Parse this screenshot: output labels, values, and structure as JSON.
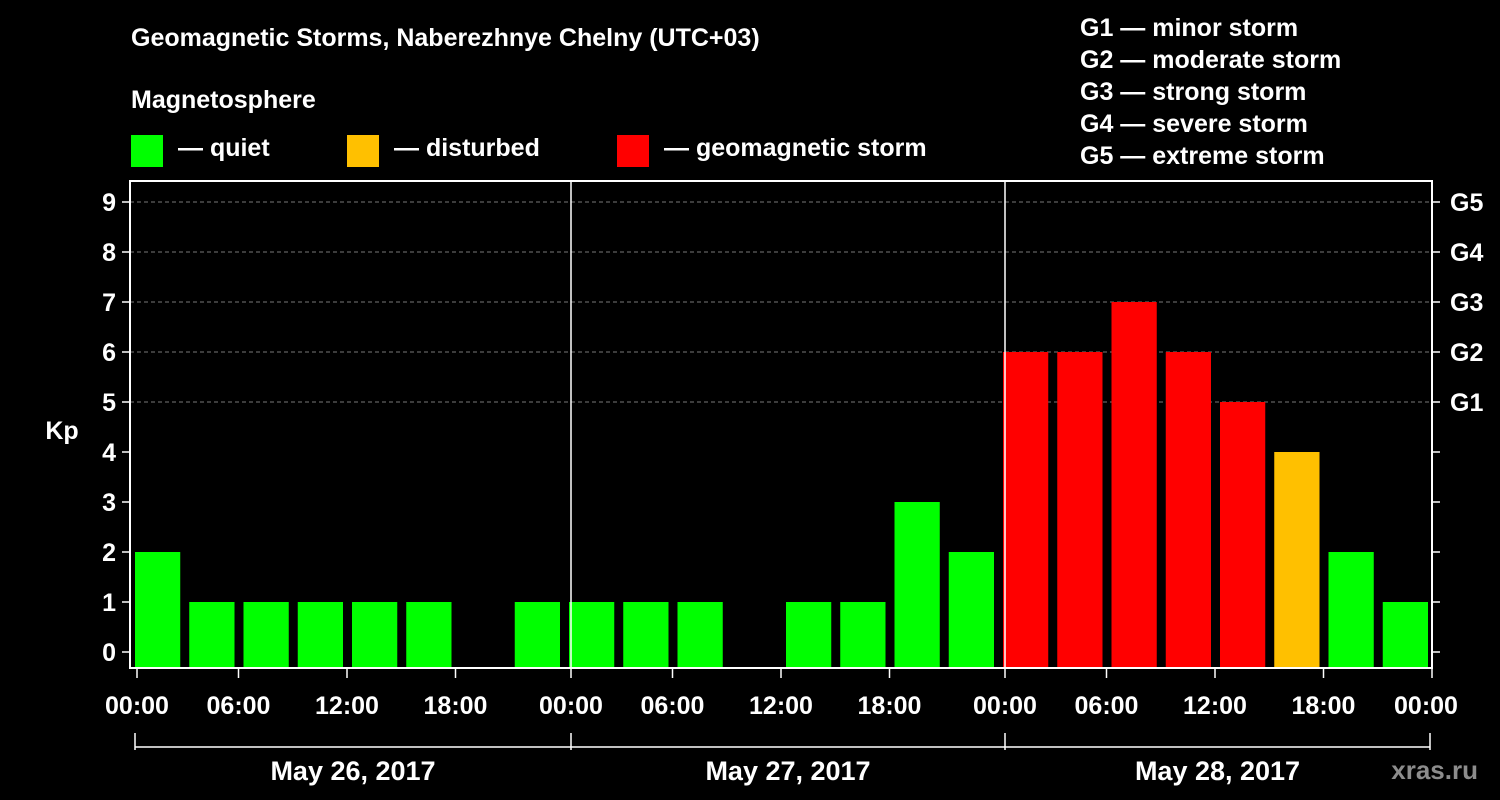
{
  "title": "Geomagnetic Storms, Naberezhnye Chelny (UTC+03)",
  "magnetosphere_label": "Magnetosphere",
  "legend": [
    {
      "label": "— quiet",
      "color": "#00ff00"
    },
    {
      "label": "— disturbed",
      "color": "#ffc000"
    },
    {
      "label": "— geomagnetic storm",
      "color": "#ff0000"
    }
  ],
  "storm_scale": [
    "G1 — minor storm",
    "G2 — moderate storm",
    "G3 — strong storm",
    "G4 — severe storm",
    "G5 — extreme storm"
  ],
  "watermark": "xras.ru",
  "colors": {
    "quiet": "#00ff00",
    "disturbed": "#ffc000",
    "storm": "#ff0000"
  },
  "chart_data": {
    "type": "bar",
    "title": "Geomagnetic Storms, Naberezhnye Chelny (UTC+03)",
    "ylabel": "Kp",
    "ylim": [
      0,
      9
    ],
    "yticks": [
      "0",
      "1",
      "2",
      "3",
      "4",
      "5",
      "6",
      "7",
      "8",
      "9"
    ],
    "right_ticks": [
      {
        "kp": 5,
        "label": "G1"
      },
      {
        "kp": 6,
        "label": "G2"
      },
      {
        "kp": 7,
        "label": "G3"
      },
      {
        "kp": 8,
        "label": "G4"
      },
      {
        "kp": 9,
        "label": "G5"
      }
    ],
    "days": [
      "May 26, 2017",
      "May 27, 2017",
      "May 28, 2017"
    ],
    "time_labels": [
      "00:00",
      "06:00",
      "12:00",
      "18:00"
    ],
    "end_label": "00:00",
    "interval_hours": 3,
    "values": [
      2,
      1,
      1,
      1,
      1,
      1,
      0,
      1,
      1,
      1,
      1,
      0,
      1,
      1,
      3,
      2,
      6,
      6,
      7,
      6,
      5,
      4,
      2,
      1
    ],
    "status": [
      "quiet",
      "quiet",
      "quiet",
      "quiet",
      "quiet",
      "quiet",
      "quiet",
      "quiet",
      "quiet",
      "quiet",
      "quiet",
      "quiet",
      "quiet",
      "quiet",
      "quiet",
      "quiet",
      "storm",
      "storm",
      "storm",
      "storm",
      "storm",
      "disturbed",
      "quiet",
      "quiet"
    ]
  }
}
